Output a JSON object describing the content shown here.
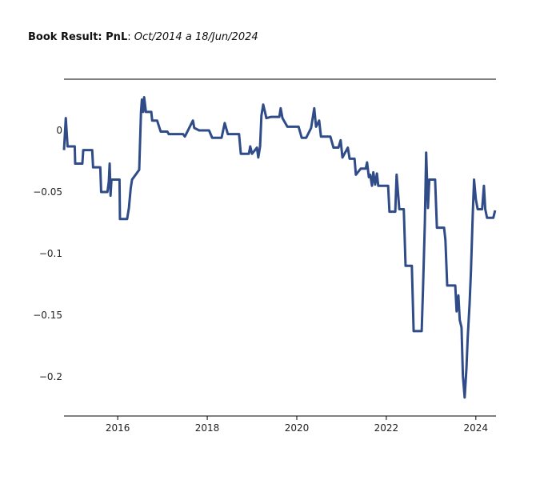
{
  "chart_data": {
    "type": "line",
    "title": {
      "bold": "Book Result: PnL",
      "separator": ":",
      "italic": "Oct/2014 a 18/Jun/2024"
    },
    "xlim": [
      2014.8,
      2024.45
    ],
    "xticks": [
      2016,
      2018,
      2020,
      2022,
      2024
    ],
    "ylim": [
      -0.232,
      0.0416
    ],
    "yticks": [
      0,
      {
        "value": -0.05,
        "label": "−0.05"
      },
      {
        "value": -0.1,
        "label": "−0.1"
      },
      {
        "value": -0.15,
        "label": "−0.15"
      },
      {
        "value": -0.2,
        "label": "−0.2"
      }
    ],
    "grid": false,
    "series": [
      {
        "color": "#2f4b88",
        "x": [
          2014.8,
          2014.84,
          2014.88,
          2015.04,
          2015.05,
          2015.21,
          2015.23,
          2015.43,
          2015.45,
          2015.61,
          2015.63,
          2015.77,
          2015.8,
          2015.82,
          2015.84,
          2015.86,
          2016.04,
          2016.05,
          2016.21,
          2016.25,
          2016.29,
          2016.32,
          2016.48,
          2016.52,
          2016.54,
          2016.57,
          2016.59,
          2016.63,
          2016.75,
          2016.77,
          2016.88,
          2016.96,
          2017.11,
          2017.14,
          2017.46,
          2017.5,
          2017.68,
          2017.71,
          2017.82,
          2018.04,
          2018.11,
          2018.32,
          2018.39,
          2018.46,
          2018.71,
          2018.75,
          2018.93,
          2018.96,
          2019.0,
          2019.11,
          2019.14,
          2019.18,
          2019.21,
          2019.25,
          2019.29,
          2019.32,
          2019.43,
          2019.61,
          2019.64,
          2019.68,
          2019.79,
          2020.04,
          2020.11,
          2020.21,
          2020.32,
          2020.39,
          2020.43,
          2020.5,
          2020.54,
          2020.75,
          2020.82,
          2020.93,
          2020.98,
          2021.02,
          2021.14,
          2021.18,
          2021.29,
          2021.32,
          2021.43,
          2021.54,
          2021.57,
          2021.61,
          2021.64,
          2021.68,
          2021.71,
          2021.75,
          2021.79,
          2021.82,
          2022.04,
          2022.07,
          2022.2,
          2022.23,
          2022.29,
          2022.39,
          2022.43,
          2022.57,
          2022.61,
          2022.79,
          2022.82,
          2022.86,
          2022.89,
          2022.93,
          2022.96,
          2023.09,
          2023.13,
          2023.29,
          2023.32,
          2023.36,
          2023.54,
          2023.57,
          2023.61,
          2023.64,
          2023.68,
          2023.71,
          2023.75,
          2023.79,
          2023.82,
          2023.86,
          2023.89,
          2023.93,
          2023.96,
          2024.0,
          2024.04,
          2024.14,
          2024.18,
          2024.21,
          2024.25,
          2024.39,
          2024.43
        ],
        "values": [
          -0.016,
          0.01,
          -0.013,
          -0.013,
          -0.027,
          -0.027,
          -0.016,
          -0.016,
          -0.03,
          -0.03,
          -0.05,
          -0.05,
          -0.042,
          -0.027,
          -0.053,
          -0.04,
          -0.04,
          -0.072,
          -0.072,
          -0.063,
          -0.047,
          -0.04,
          -0.032,
          0.015,
          0.025,
          0.015,
          0.027,
          0.015,
          0.015,
          0.008,
          0.008,
          -0.001,
          -0.001,
          -0.003,
          -0.003,
          -0.005,
          0.008,
          0.002,
          0.0,
          0.0,
          -0.006,
          -0.006,
          0.006,
          -0.003,
          -0.003,
          -0.019,
          -0.019,
          -0.013,
          -0.019,
          -0.014,
          -0.022,
          -0.013,
          0.012,
          0.021,
          0.015,
          0.01,
          0.011,
          0.011,
          0.018,
          0.01,
          0.003,
          0.003,
          -0.006,
          -0.006,
          0.002,
          0.018,
          0.003,
          0.008,
          -0.005,
          -0.005,
          -0.014,
          -0.014,
          -0.008,
          -0.022,
          -0.014,
          -0.023,
          -0.023,
          -0.036,
          -0.031,
          -0.031,
          -0.026,
          -0.038,
          -0.036,
          -0.045,
          -0.034,
          -0.044,
          -0.035,
          -0.045,
          -0.045,
          -0.066,
          -0.066,
          -0.036,
          -0.064,
          -0.064,
          -0.11,
          -0.11,
          -0.163,
          -0.163,
          -0.128,
          -0.076,
          -0.018,
          -0.063,
          -0.04,
          -0.04,
          -0.079,
          -0.079,
          -0.089,
          -0.126,
          -0.126,
          -0.147,
          -0.134,
          -0.154,
          -0.16,
          -0.199,
          -0.217,
          -0.193,
          -0.167,
          -0.141,
          -0.115,
          -0.069,
          -0.04,
          -0.056,
          -0.064,
          -0.064,
          -0.045,
          -0.064,
          -0.071,
          -0.071,
          -0.065
        ]
      }
    ]
  }
}
